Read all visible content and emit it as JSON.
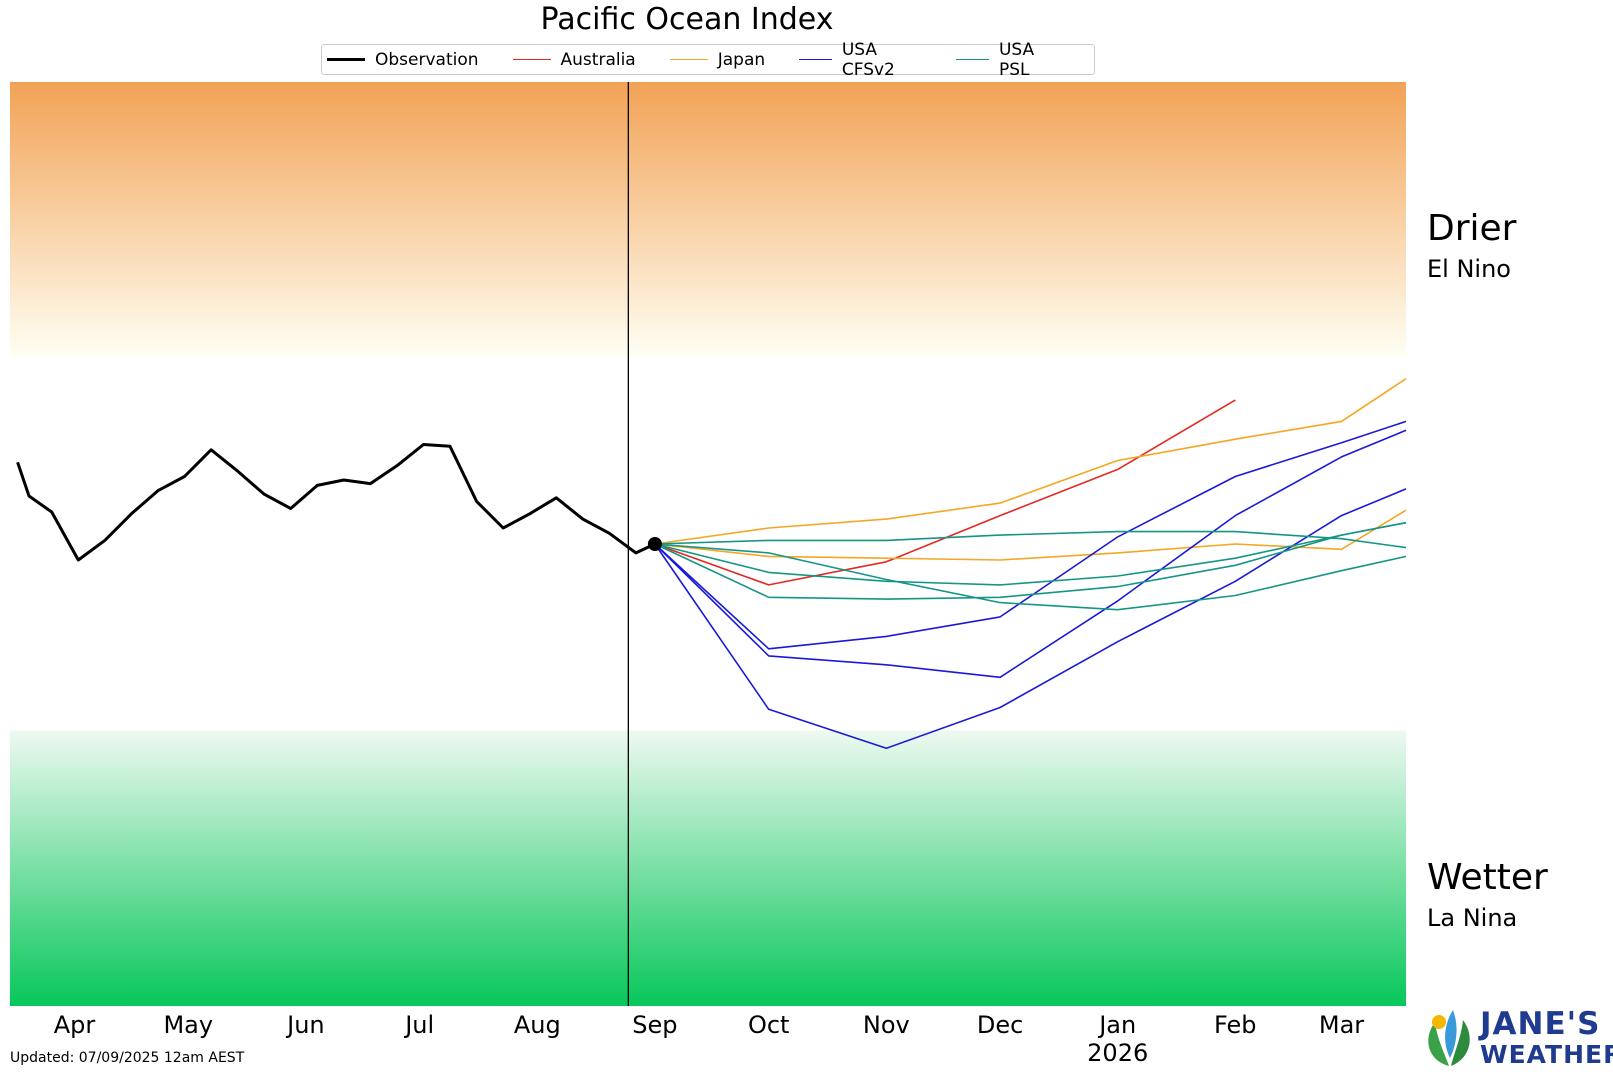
{
  "chart_data": {
    "type": "line",
    "title": "Pacific Ocean Index",
    "xlabel": "",
    "ylabel": "",
    "x_axis": {
      "start_month": "Apr",
      "end_month": "Mar",
      "tick_labels": [
        "Apr",
        "May",
        "Jun",
        "Jul",
        "Aug",
        "Sep",
        "Oct",
        "Nov",
        "Dec",
        "Jan",
        "Feb",
        "Mar"
      ],
      "year_label": "2026",
      "year_label_under": "Jan"
    },
    "ylim": [
      -2.6,
      2.6
    ],
    "y_ticks_shown": false,
    "grid": false,
    "legend_position": "top-center",
    "regions": [
      {
        "label": "Drier",
        "sublabel": "El Nino",
        "from": 1.05,
        "to": 2.6,
        "color": "#f2a255"
      },
      {
        "label": "Wetter",
        "sublabel": "La Nina",
        "from": -2.6,
        "to": -1.05,
        "color": "#07c75a"
      }
    ],
    "current_marker": {
      "x": "Sep 8",
      "y": 0.0
    },
    "series": [
      {
        "name": "Observation",
        "color": "#000000",
        "width": 3,
        "points": [
          [
            "Mar 31",
            0.46
          ],
          [
            "Apr 3",
            0.27
          ],
          [
            "Apr 9",
            0.18
          ],
          [
            "Apr 16",
            -0.09
          ],
          [
            "Apr 23",
            0.02
          ],
          [
            "Apr 30",
            0.17
          ],
          [
            "May 7",
            0.3
          ],
          [
            "May 14",
            0.38
          ],
          [
            "May 21",
            0.53
          ],
          [
            "May 28",
            0.41
          ],
          [
            "Jun 4",
            0.28
          ],
          [
            "Jun 11",
            0.2
          ],
          [
            "Jun 18",
            0.33
          ],
          [
            "Jun 25",
            0.36
          ],
          [
            "Jul 2",
            0.34
          ],
          [
            "Jul 9",
            0.44
          ],
          [
            "Jul 16",
            0.56
          ],
          [
            "Jul 23",
            0.55
          ],
          [
            "Jul 30",
            0.24
          ],
          [
            "Aug 6",
            0.09
          ],
          [
            "Aug 13",
            0.17
          ],
          [
            "Aug 20",
            0.26
          ],
          [
            "Aug 27",
            0.14
          ],
          [
            "Sep 3",
            0.06
          ],
          [
            "Sep 10",
            -0.05
          ],
          [
            "Sep 15",
            0.0
          ]
        ]
      },
      {
        "name": "Australia",
        "color": "#e32a22",
        "width": 1.6,
        "lines": [
          [
            [
              "Sep 15",
              0.0
            ],
            [
              "Oct 15",
              -0.23
            ],
            [
              "Nov 15",
              -0.1
            ],
            [
              "Dec 15",
              0.16
            ],
            [
              "Jan 15",
              0.42
            ],
            [
              "Feb 15",
              0.81
            ]
          ]
        ]
      },
      {
        "name": "Japan",
        "color": "#f5a623",
        "width": 1.6,
        "lines": [
          [
            [
              "Sep 15",
              0.0
            ],
            [
              "Oct 15",
              0.09
            ],
            [
              "Nov 15",
              0.14
            ],
            [
              "Dec 15",
              0.23
            ],
            [
              "Jan 15",
              0.47
            ],
            [
              "Feb 15",
              0.59
            ],
            [
              "Mar 15",
              0.69
            ],
            [
              "Apr 1",
              0.93
            ]
          ],
          [
            [
              "Sep 15",
              0.0
            ],
            [
              "Oct 15",
              -0.07
            ],
            [
              "Nov 15",
              -0.08
            ],
            [
              "Dec 15",
              -0.09
            ],
            [
              "Jan 15",
              -0.05
            ],
            [
              "Feb 15",
              0.0
            ],
            [
              "Mar 15",
              -0.03
            ],
            [
              "Apr 1",
              0.19
            ]
          ]
        ]
      },
      {
        "name": "USA CFSv2",
        "color": "#1a1ad6",
        "width": 1.6,
        "lines": [
          [
            [
              "Sep 15",
              0.0
            ],
            [
              "Oct 15",
              -0.59
            ],
            [
              "Nov 15",
              -0.52
            ],
            [
              "Dec 15",
              -0.41
            ],
            [
              "Jan 15",
              0.04
            ],
            [
              "Feb 15",
              0.38
            ],
            [
              "Mar 15",
              0.57
            ],
            [
              "Apr 1",
              0.69
            ]
          ],
          [
            [
              "Sep 15",
              0.0
            ],
            [
              "Oct 15",
              -0.63
            ],
            [
              "Nov 15",
              -0.68
            ],
            [
              "Dec 15",
              -0.75
            ],
            [
              "Jan 15",
              -0.32
            ],
            [
              "Feb 15",
              0.16
            ],
            [
              "Mar 15",
              0.49
            ],
            [
              "Apr 1",
              0.64
            ]
          ],
          [
            [
              "Sep 15",
              0.0
            ],
            [
              "Oct 15",
              -0.93
            ],
            [
              "Nov 15",
              -1.15
            ],
            [
              "Dec 15",
              -0.92
            ],
            [
              "Jan 15",
              -0.55
            ],
            [
              "Feb 15",
              -0.21
            ],
            [
              "Mar 15",
              0.16
            ],
            [
              "Apr 1",
              0.31
            ]
          ]
        ]
      },
      {
        "name": "USA PSL",
        "color": "#169587",
        "width": 1.6,
        "lines": [
          [
            [
              "Sep 15",
              0.0
            ],
            [
              "Oct 15",
              0.02
            ],
            [
              "Nov 15",
              0.02
            ],
            [
              "Dec 15",
              0.05
            ],
            [
              "Jan 15",
              0.07
            ],
            [
              "Feb 15",
              0.07
            ],
            [
              "Mar 15",
              0.03
            ],
            [
              "Apr 1",
              -0.02
            ]
          ],
          [
            [
              "Sep 15",
              0.0
            ],
            [
              "Oct 15",
              -0.16
            ],
            [
              "Nov 15",
              -0.21
            ],
            [
              "Dec 15",
              -0.23
            ],
            [
              "Jan 15",
              -0.18
            ],
            [
              "Feb 15",
              -0.08
            ],
            [
              "Mar 15",
              0.05
            ],
            [
              "Apr 1",
              0.12
            ]
          ],
          [
            [
              "Sep 15",
              0.0
            ],
            [
              "Oct 15",
              -0.3
            ],
            [
              "Nov 15",
              -0.31
            ],
            [
              "Dec 15",
              -0.3
            ],
            [
              "Jan 15",
              -0.24
            ],
            [
              "Feb 15",
              -0.12
            ],
            [
              "Mar 15",
              0.05
            ],
            [
              "Apr 1",
              0.12
            ]
          ],
          [
            [
              "Sep 15",
              0.0
            ],
            [
              "Oct 15",
              -0.05
            ],
            [
              "Nov 15",
              -0.2
            ],
            [
              "Dec 15",
              -0.33
            ],
            [
              "Jan 15",
              -0.37
            ],
            [
              "Feb 15",
              -0.29
            ],
            [
              "Mar 15",
              -0.15
            ],
            [
              "Apr 1",
              -0.07
            ]
          ]
        ]
      }
    ]
  },
  "side_labels": {
    "drier": "Drier",
    "el_nino": "El Nino",
    "wetter": "Wetter",
    "la_nina": "La Nina"
  },
  "footer": {
    "updated": "Updated: 07/09/2025 12am AEST"
  },
  "logo": {
    "line1": "JANE'S",
    "line2": "WEATHER",
    "icon": "leaf-logo-icon",
    "colors": {
      "blue": "#1f3b8f",
      "green": "#3aa14a",
      "cyan": "#3a9ad9"
    }
  }
}
